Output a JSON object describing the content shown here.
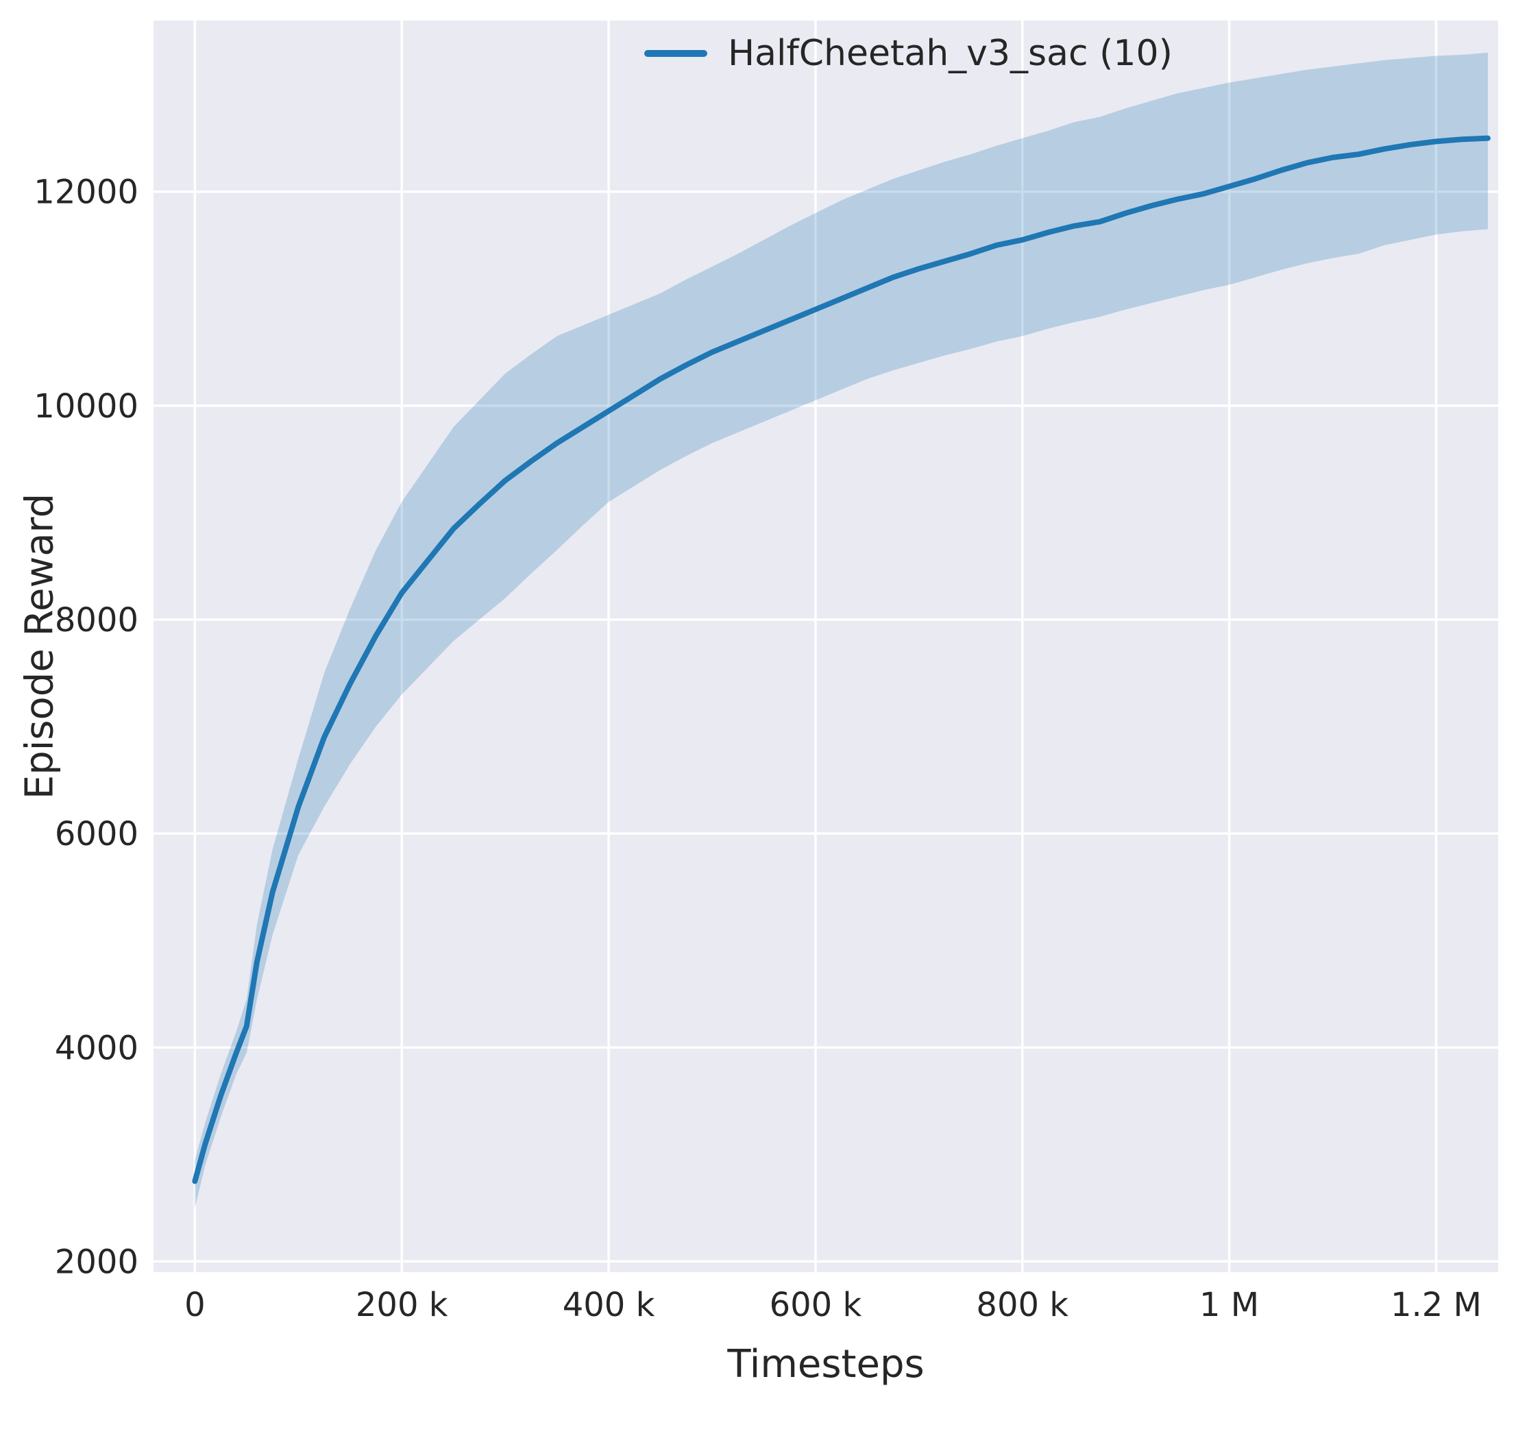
{
  "chart_data": {
    "type": "line",
    "title": "",
    "xlabel": "Timesteps",
    "ylabel": "Episode Reward",
    "xlim": [
      -40000,
      1260000
    ],
    "ylim": [
      1900,
      13600
    ],
    "grid": true,
    "legend_position": "upper right inside plot",
    "xticks": {
      "values": [
        0,
        200000,
        400000,
        600000,
        800000,
        1000000,
        1200000
      ],
      "labels": [
        "0",
        "200 k",
        "400 k",
        "600 k",
        "800 k",
        "1 M",
        "1.2 M"
      ]
    },
    "yticks": {
      "values": [
        2000,
        4000,
        6000,
        8000,
        10000,
        12000
      ],
      "labels": [
        "2000",
        "4000",
        "6000",
        "8000",
        "10000",
        "12000"
      ]
    },
    "colors": {
      "line": "#1f77b4",
      "band": "#1f77b4",
      "band_opacity": 0.25,
      "plot_bg": "#eaeaf2",
      "grid": "#ffffff",
      "text": "#262626",
      "figure_bg": "#ffffff"
    },
    "series": [
      {
        "name": "HalfCheetah_v3_sac (10)",
        "x": [
          0,
          10000,
          25000,
          40000,
          50000,
          60000,
          75000,
          100000,
          125000,
          150000,
          175000,
          200000,
          225000,
          250000,
          275000,
          300000,
          325000,
          350000,
          375000,
          400000,
          425000,
          450000,
          475000,
          500000,
          525000,
          550000,
          575000,
          600000,
          625000,
          650000,
          675000,
          700000,
          725000,
          750000,
          775000,
          800000,
          825000,
          850000,
          875000,
          900000,
          925000,
          950000,
          975000,
          1000000,
          1025000,
          1050000,
          1075000,
          1100000,
          1125000,
          1150000,
          1175000,
          1200000,
          1225000,
          1250000
        ],
        "mean": [
          2750,
          3100,
          3550,
          3950,
          4200,
          4800,
          5450,
          6250,
          6900,
          7400,
          7850,
          8250,
          8550,
          8850,
          9080,
          9300,
          9480,
          9650,
          9800,
          9950,
          10100,
          10250,
          10380,
          10500,
          10600,
          10700,
          10800,
          10900,
          11000,
          11100,
          11200,
          11280,
          11350,
          11420,
          11500,
          11550,
          11620,
          11680,
          11720,
          11800,
          11870,
          11930,
          11980,
          12050,
          12120,
          12200,
          12270,
          12320,
          12350,
          12400,
          12440,
          12470,
          12490,
          12500
        ],
        "lower": [
          2500,
          2900,
          3350,
          3750,
          3950,
          4450,
          5050,
          5800,
          6250,
          6650,
          7000,
          7300,
          7550,
          7800,
          8000,
          8200,
          8430,
          8650,
          8880,
          9100,
          9250,
          9400,
          9530,
          9650,
          9750,
          9850,
          9950,
          10050,
          10150,
          10250,
          10330,
          10400,
          10470,
          10530,
          10600,
          10650,
          10720,
          10780,
          10830,
          10900,
          10960,
          11020,
          11080,
          11130,
          11200,
          11270,
          11330,
          11380,
          11420,
          11500,
          11550,
          11600,
          11630,
          11650
        ],
        "upper": [
          2950,
          3300,
          3750,
          4150,
          4450,
          5150,
          5850,
          6700,
          7500,
          8100,
          8650,
          9100,
          9450,
          9800,
          10050,
          10300,
          10480,
          10650,
          10750,
          10850,
          10950,
          11050,
          11180,
          11300,
          11420,
          11550,
          11680,
          11800,
          11920,
          12020,
          12120,
          12200,
          12280,
          12350,
          12430,
          12500,
          12570,
          12650,
          12700,
          12780,
          12850,
          12920,
          12970,
          13020,
          13060,
          13100,
          13140,
          13170,
          13200,
          13230,
          13250,
          13270,
          13280,
          13300
        ]
      }
    ]
  }
}
